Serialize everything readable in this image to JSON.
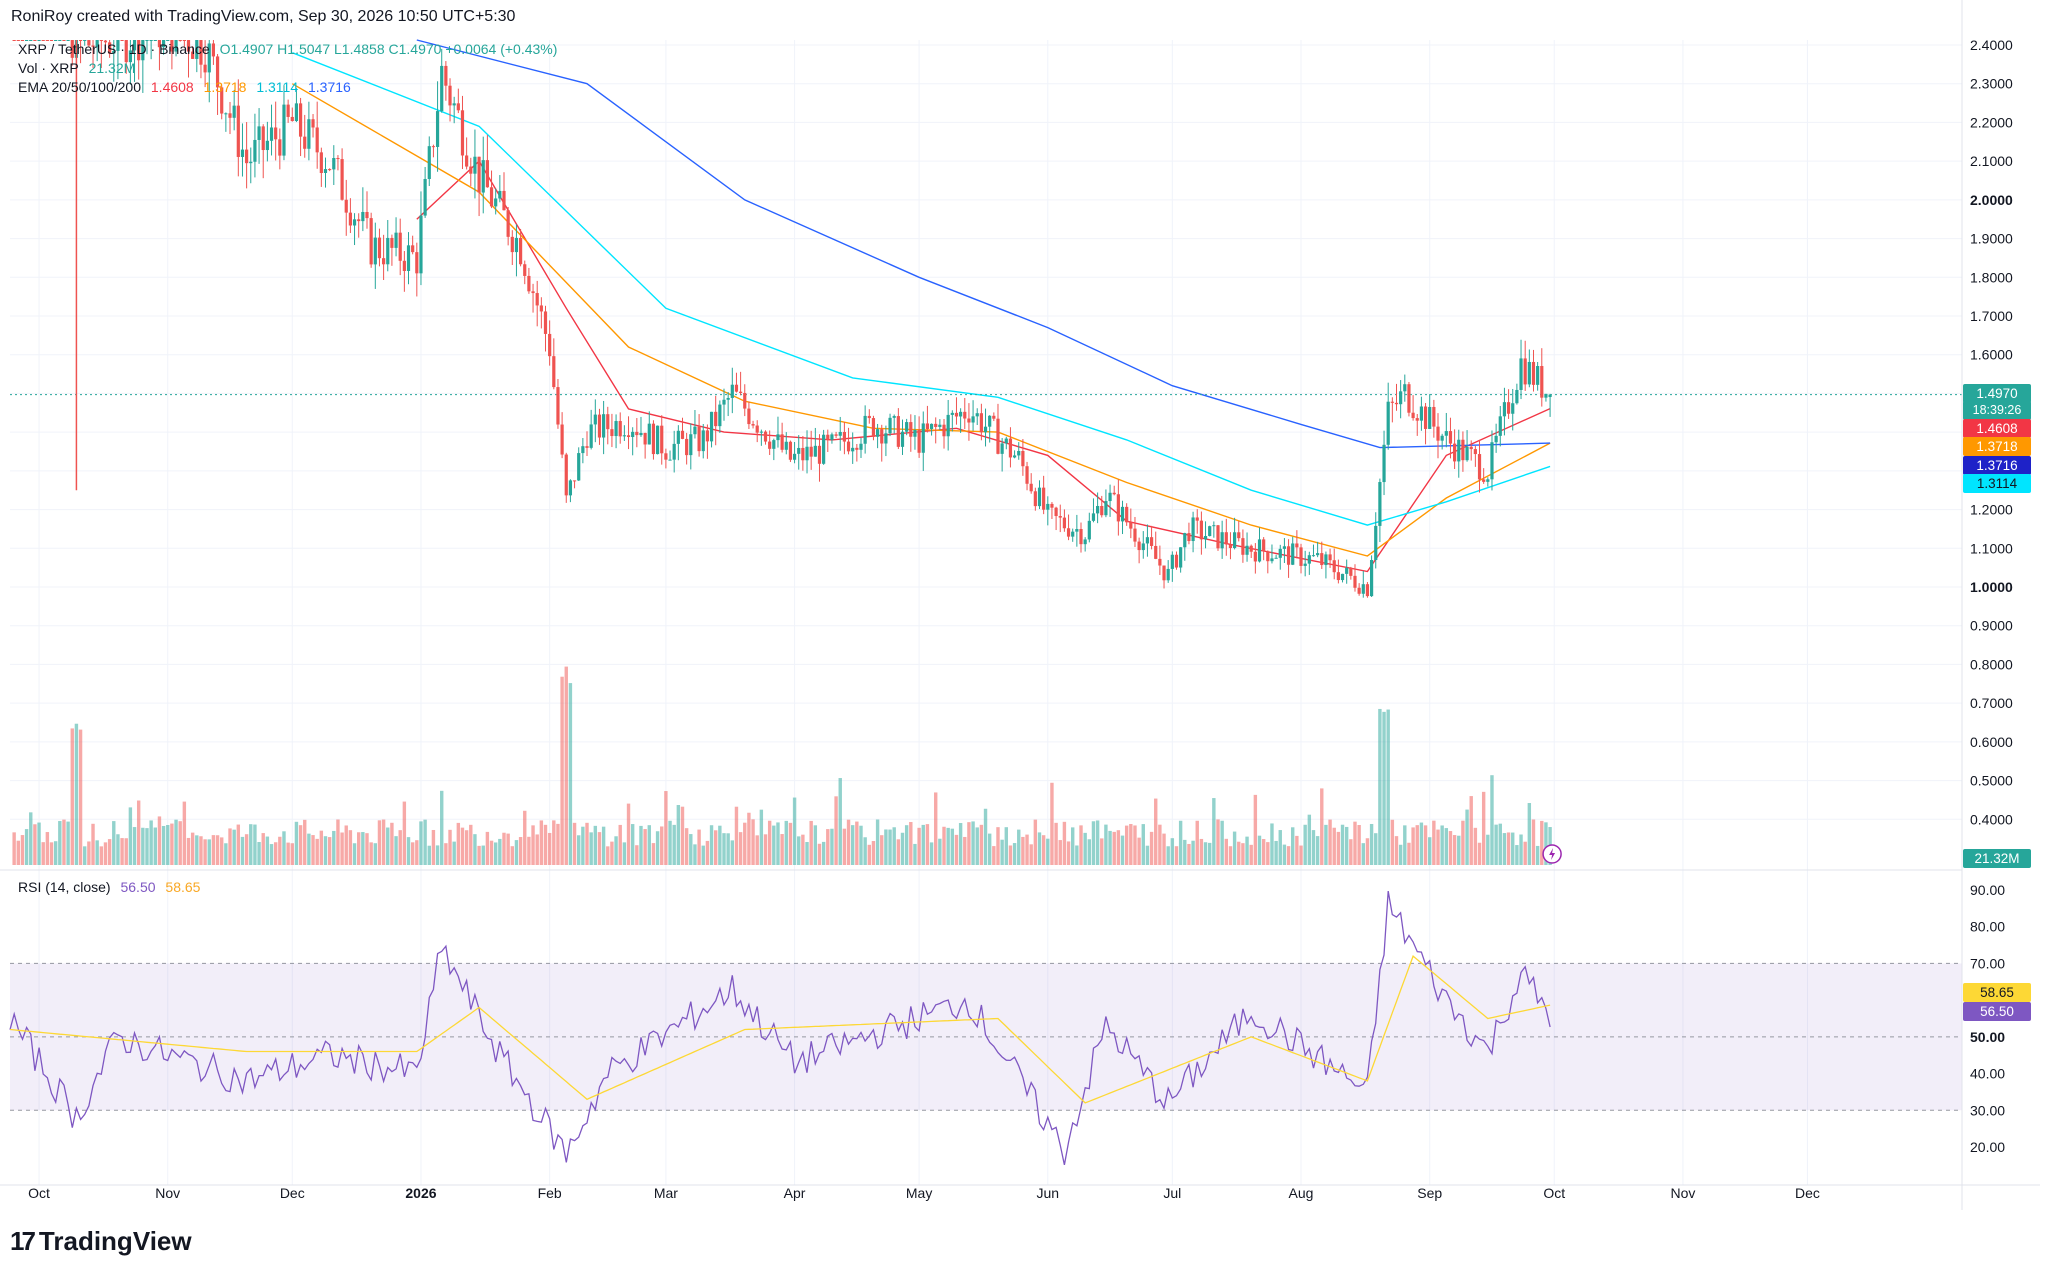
{
  "header": {
    "author": "RoniRoy created with TradingView.com, Sep 30, 2026 10:50 UTC+5:30"
  },
  "legend": {
    "symbol": "XRP / TetherUS · 1D · Binance",
    "ohlc": "O1.4907 H1.5047 L1.4858 C1.4970 +0.0064 (+0.43%)",
    "vol_label": "Vol · XRP",
    "vol_value": "21.32M",
    "ema_label": "EMA 20/50/100/200",
    "ema20": "1.4608",
    "ema50": "1.3718",
    "ema100": "1.3114",
    "ema200": "1.3716",
    "rsi_label": "RSI (14, close)",
    "rsi_value": "56.50",
    "rsi_ma": "58.65"
  },
  "price_tags": {
    "last": "1.4970",
    "countdown": "18:39:26",
    "ema20": "1.4608",
    "ema50": "1.3718",
    "ema200": "1.3716",
    "ema100": "1.3114",
    "volume": "21.32M",
    "rsi_ma": "58.65",
    "rsi": "56.50"
  },
  "colors": {
    "up": "#26a69a",
    "down": "#ef5350",
    "ema20": "#f23645",
    "ema50": "#ff9800",
    "ema100": "#00e5ff",
    "ema200": "#2962ff",
    "rsi": "#7e57c2",
    "rsi_ma": "#fdd835"
  },
  "footer": {
    "brand": "TradingView"
  },
  "chart_data": [
    {
      "type": "candlestick",
      "title": "XRP / TetherUS · 1D · Binance",
      "x_labels": [
        "Oct",
        "Nov",
        "Dec",
        "2026",
        "Feb",
        "Mar",
        "Apr",
        "May",
        "Jun",
        "Jul",
        "Aug",
        "Sep",
        "Oct",
        "Nov",
        "Dec"
      ],
      "y_ticks": [
        "2.4000",
        "2.3000",
        "2.2000",
        "2.1000",
        "2.0000",
        "1.9000",
        "1.8000",
        "1.7000",
        "1.6000",
        "1.5000",
        "1.4000",
        "1.3000",
        "1.2000",
        "1.1000",
        "1.0000",
        "0.9000",
        "0.8000",
        "0.7000",
        "0.6000",
        "0.5000",
        "0.4000"
      ],
      "ylim": [
        0.35,
        2.45
      ],
      "close_path": [
        {
          "x": "2025-09-24",
          "y": 2.85
        },
        {
          "x": "2025-10-10",
          "y": 2.4
        },
        {
          "x": "2025-10-20",
          "y": 2.42
        },
        {
          "x": "2025-11-01",
          "y": 2.45
        },
        {
          "x": "2025-11-10",
          "y": 2.4
        },
        {
          "x": "2025-11-20",
          "y": 2.1
        },
        {
          "x": "2025-12-01",
          "y": 2.2
        },
        {
          "x": "2025-12-10",
          "y": 2.1
        },
        {
          "x": "2025-12-20",
          "y": 1.88
        },
        {
          "x": "2025-12-31",
          "y": 1.85
        },
        {
          "x": "2026-01-06",
          "y": 2.33
        },
        {
          "x": "2026-01-15",
          "y": 2.06
        },
        {
          "x": "2026-01-25",
          "y": 1.88
        },
        {
          "x": "2026-02-01",
          "y": 1.62
        },
        {
          "x": "2026-02-05",
          "y": 1.22
        },
        {
          "x": "2026-02-10",
          "y": 1.4
        },
        {
          "x": "2026-02-20",
          "y": 1.43
        },
        {
          "x": "2026-03-01",
          "y": 1.36
        },
        {
          "x": "2026-03-10",
          "y": 1.38
        },
        {
          "x": "2026-03-17",
          "y": 1.5
        },
        {
          "x": "2026-03-31",
          "y": 1.33
        },
        {
          "x": "2026-04-10",
          "y": 1.36
        },
        {
          "x": "2026-04-20",
          "y": 1.42
        },
        {
          "x": "2026-05-01",
          "y": 1.38
        },
        {
          "x": "2026-05-13",
          "y": 1.46
        },
        {
          "x": "2026-05-25",
          "y": 1.33
        },
        {
          "x": "2026-06-01",
          "y": 1.18
        },
        {
          "x": "2026-06-10",
          "y": 1.14
        },
        {
          "x": "2026-06-15",
          "y": 1.24
        },
        {
          "x": "2026-06-30",
          "y": 1.03
        },
        {
          "x": "2026-07-05",
          "y": 1.15
        },
        {
          "x": "2026-07-20",
          "y": 1.1
        },
        {
          "x": "2026-08-05",
          "y": 1.07
        },
        {
          "x": "2026-08-17",
          "y": 1.0
        },
        {
          "x": "2026-08-22",
          "y": 1.45
        },
        {
          "x": "2026-08-26",
          "y": 1.5
        },
        {
          "x": "2026-09-05",
          "y": 1.38
        },
        {
          "x": "2026-09-15",
          "y": 1.3
        },
        {
          "x": "2026-09-23",
          "y": 1.58
        },
        {
          "x": "2026-09-30",
          "y": 1.497
        }
      ],
      "series": [
        {
          "name": "EMA 20",
          "points": [
            {
              "x": "2025-12-31",
              "y": 1.95
            },
            {
              "x": "2026-01-15",
              "y": 2.1
            },
            {
              "x": "2026-02-05",
              "y": 1.72
            },
            {
              "x": "2026-02-20",
              "y": 1.46
            },
            {
              "x": "2026-03-15",
              "y": 1.4
            },
            {
              "x": "2026-04-10",
              "y": 1.38
            },
            {
              "x": "2026-05-10",
              "y": 1.41
            },
            {
              "x": "2026-06-01",
              "y": 1.34
            },
            {
              "x": "2026-06-20",
              "y": 1.17
            },
            {
              "x": "2026-07-15",
              "y": 1.11
            },
            {
              "x": "2026-08-17",
              "y": 1.04
            },
            {
              "x": "2026-09-05",
              "y": 1.34
            },
            {
              "x": "2026-09-30",
              "y": 1.4608
            }
          ]
        },
        {
          "name": "EMA 50",
          "points": [
            {
              "x": "2025-12-01",
              "y": 2.3
            },
            {
              "x": "2026-01-15",
              "y": 2.02
            },
            {
              "x": "2026-02-20",
              "y": 1.62
            },
            {
              "x": "2026-03-20",
              "y": 1.48
            },
            {
              "x": "2026-04-20",
              "y": 1.41
            },
            {
              "x": "2026-05-20",
              "y": 1.4
            },
            {
              "x": "2026-06-20",
              "y": 1.27
            },
            {
              "x": "2026-07-20",
              "y": 1.16
            },
            {
              "x": "2026-08-17",
              "y": 1.08
            },
            {
              "x": "2026-09-05",
              "y": 1.23
            },
            {
              "x": "2026-09-30",
              "y": 1.3718
            }
          ]
        },
        {
          "name": "EMA 100",
          "points": [
            {
              "x": "2025-12-01",
              "y": 2.38
            },
            {
              "x": "2026-01-15",
              "y": 2.19
            },
            {
              "x": "2026-03-01",
              "y": 1.72
            },
            {
              "x": "2026-04-15",
              "y": 1.54
            },
            {
              "x": "2026-05-20",
              "y": 1.49
            },
            {
              "x": "2026-06-20",
              "y": 1.38
            },
            {
              "x": "2026-07-20",
              "y": 1.25
            },
            {
              "x": "2026-08-17",
              "y": 1.16
            },
            {
              "x": "2026-09-05",
              "y": 1.22
            },
            {
              "x": "2026-09-30",
              "y": 1.3114
            }
          ]
        },
        {
          "name": "EMA 200",
          "points": [
            {
              "x": "2025-12-31",
              "y": 2.45
            },
            {
              "x": "2026-02-10",
              "y": 2.3
            },
            {
              "x": "2026-03-20",
              "y": 2.0
            },
            {
              "x": "2026-05-01",
              "y": 1.8
            },
            {
              "x": "2026-06-01",
              "y": 1.67
            },
            {
              "x": "2026-07-01",
              "y": 1.52
            },
            {
              "x": "2026-08-01",
              "y": 1.42
            },
            {
              "x": "2026-08-20",
              "y": 1.36
            },
            {
              "x": "2026-09-30",
              "y": 1.3716
            }
          ]
        }
      ]
    },
    {
      "type": "bar",
      "title": "Vol · XRP",
      "note": "Volume histogram under the price pane; highlighted spikes on Oct 10 2025, Feb 5 2026 and Aug 21 2026.",
      "spikes": [
        {
          "x": "2025-10-10",
          "y": 0.7
        },
        {
          "x": "2026-02-05",
          "y": 0.8
        },
        {
          "x": "2026-08-21",
          "y": 0.7
        }
      ]
    },
    {
      "type": "line",
      "title": "RSI (14, close)",
      "y_ticks": [
        "90.00",
        "80.00",
        "70.00",
        "60.00",
        "50.00",
        "40.00",
        "30.00",
        "20.00"
      ],
      "ylim": [
        10,
        95
      ],
      "bands": [
        30,
        70
      ],
      "series": [
        {
          "name": "RSI",
          "points": [
            {
              "x": "2025-09-24",
              "y": 55
            },
            {
              "x": "2025-10-10",
              "y": 28
            },
            {
              "x": "2025-10-20",
              "y": 50
            },
            {
              "x": "2025-11-01",
              "y": 45
            },
            {
              "x": "2025-11-20",
              "y": 38
            },
            {
              "x": "2025-12-10",
              "y": 45
            },
            {
              "x": "2025-12-31",
              "y": 40
            },
            {
              "x": "2026-01-06",
              "y": 74
            },
            {
              "x": "2026-01-20",
              "y": 45
            },
            {
              "x": "2026-02-05",
              "y": 18
            },
            {
              "x": "2026-02-15",
              "y": 40
            },
            {
              "x": "2026-03-17",
              "y": 63
            },
            {
              "x": "2026-04-01",
              "y": 43
            },
            {
              "x": "2026-05-13",
              "y": 60
            },
            {
              "x": "2026-06-05",
              "y": 19
            },
            {
              "x": "2026-06-15",
              "y": 53
            },
            {
              "x": "2026-06-30",
              "y": 32
            },
            {
              "x": "2026-07-20",
              "y": 57
            },
            {
              "x": "2026-08-17",
              "y": 35
            },
            {
              "x": "2026-08-22",
              "y": 86
            },
            {
              "x": "2026-09-05",
              "y": 60
            },
            {
              "x": "2026-09-15",
              "y": 46
            },
            {
              "x": "2026-09-23",
              "y": 67
            },
            {
              "x": "2026-09-30",
              "y": 56.5
            }
          ]
        },
        {
          "name": "RSI MA",
          "points": [
            {
              "x": "2025-09-24",
              "y": 52
            },
            {
              "x": "2025-11-20",
              "y": 46
            },
            {
              "x": "2025-12-31",
              "y": 46
            },
            {
              "x": "2026-01-15",
              "y": 58
            },
            {
              "x": "2026-02-10",
              "y": 33
            },
            {
              "x": "2026-03-20",
              "y": 52
            },
            {
              "x": "2026-05-20",
              "y": 55
            },
            {
              "x": "2026-06-10",
              "y": 32
            },
            {
              "x": "2026-07-20",
              "y": 50
            },
            {
              "x": "2026-08-17",
              "y": 38
            },
            {
              "x": "2026-08-28",
              "y": 72
            },
            {
              "x": "2026-09-15",
              "y": 55
            },
            {
              "x": "2026-09-30",
              "y": 58.65
            }
          ]
        }
      ]
    }
  ]
}
